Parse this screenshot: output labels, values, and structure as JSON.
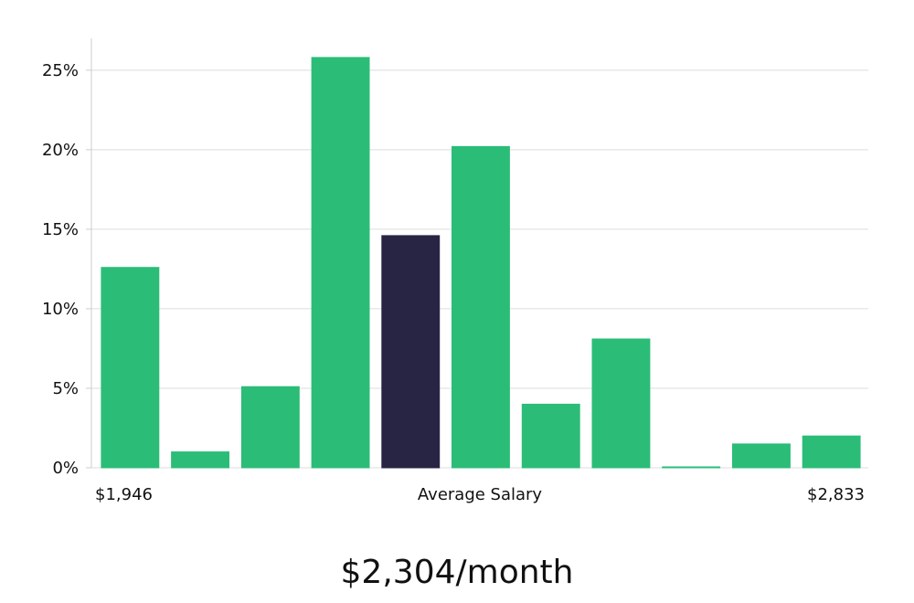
{
  "chart_data": {
    "type": "bar",
    "title": "",
    "ylim": [
      0,
      27
    ],
    "yticks": [
      0,
      5,
      10,
      15,
      20,
      25
    ],
    "ytick_labels": [
      "0%",
      "5%",
      "10%",
      "15%",
      "20%",
      "25%"
    ],
    "values": [
      12.6,
      1.0,
      5.1,
      25.8,
      14.6,
      20.2,
      4.0,
      8.1,
      0.05,
      1.5,
      2.0
    ],
    "highlight_index": 4,
    "grid": true,
    "x_range_labels": {
      "min": "$1,946",
      "center": "Average Salary",
      "max": "$2,833"
    },
    "colors": {
      "bar": "#2bbd78",
      "highlight": "#272444",
      "grid": "#dddddd",
      "axis": "#cccccc"
    }
  },
  "headline": "$2,304/month"
}
